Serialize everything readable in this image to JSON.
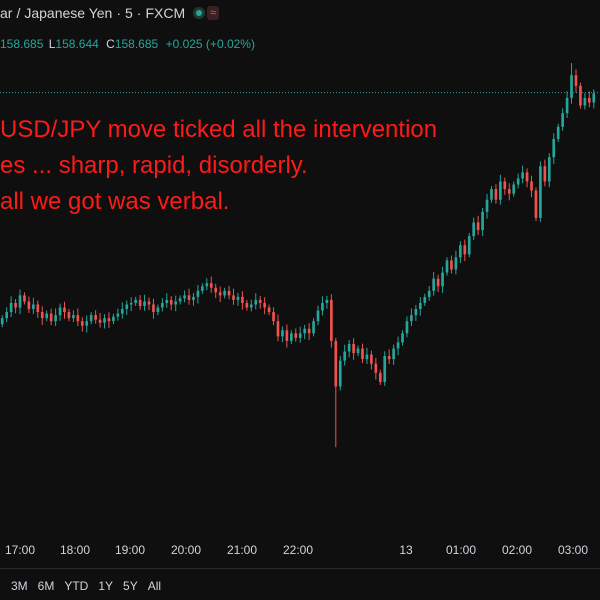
{
  "header": {
    "title_parts": [
      "ar",
      "Japanese Yen",
      "5",
      "FXCM"
    ],
    "wave_glyph": "≈"
  },
  "ohlc": {
    "open_value": "158.685",
    "low_label": "L",
    "low_value": "158.644",
    "close_label": "C",
    "close_value": "158.685",
    "change": "+0.025 (+0.02%)"
  },
  "annotation": {
    "lines": [
      "USD/JPY move ticked all the intervention",
      "es ... sharp, rapid, disorderly.",
      "all we got was verbal."
    ]
  },
  "colors": {
    "up": "#26a69a",
    "down": "#ef5350",
    "annotation": "#ff1a1a",
    "background": "#0f0f0f",
    "price_line": "#26a69a"
  },
  "chart_data": {
    "type": "candlestick",
    "symbol": "USD/JPY",
    "interval": "5",
    "source": "FXCM",
    "current_price": 158.685,
    "x_ticks": [
      "17:00",
      "18:00",
      "19:00",
      "20:00",
      "21:00",
      "22:00",
      "13",
      "01:00",
      "02:00",
      "03:00"
    ],
    "ylim": [
      156.2,
      158.9
    ],
    "closes": [
      157.2,
      157.24,
      157.3,
      157.27,
      157.35,
      157.31,
      157.26,
      157.29,
      157.24,
      157.2,
      157.23,
      157.18,
      157.22,
      157.27,
      157.24,
      157.2,
      157.22,
      157.18,
      157.15,
      157.18,
      157.22,
      157.19,
      157.17,
      157.2,
      157.18,
      157.21,
      157.23,
      157.26,
      157.29,
      157.3,
      157.32,
      157.28,
      157.31,
      157.29,
      157.24,
      157.27,
      157.3,
      157.32,
      157.29,
      157.31,
      157.33,
      157.35,
      157.32,
      157.34,
      157.38,
      157.41,
      157.43,
      157.4,
      157.37,
      157.35,
      157.38,
      157.35,
      157.32,
      157.34,
      157.3,
      157.27,
      157.29,
      157.32,
      157.3,
      157.27,
      157.24,
      157.18,
      157.08,
      157.12,
      157.05,
      157.1,
      157.07,
      157.1,
      157.13,
      157.1,
      157.18,
      157.25,
      157.3,
      157.32,
      157.05,
      156.75,
      156.92,
      156.98,
      157.03,
      156.97,
      157.0,
      156.93,
      156.96,
      156.9,
      156.84,
      156.78,
      156.95,
      156.93,
      157.0,
      157.04,
      157.1,
      157.18,
      157.22,
      157.26,
      157.3,
      157.34,
      157.38,
      157.46,
      157.41,
      157.5,
      157.58,
      157.52,
      157.6,
      157.68,
      157.62,
      157.74,
      157.83,
      157.78,
      157.9,
      157.98,
      158.05,
      157.98,
      158.1,
      158.05,
      158.02,
      158.08,
      158.12,
      158.16,
      158.1,
      158.04,
      157.86,
      158.2,
      158.1,
      158.26,
      158.38,
      158.46,
      158.55,
      158.65,
      158.8,
      158.73,
      158.6,
      158.65,
      158.62,
      158.68
    ],
    "extent_min": 156.35,
    "extent_max": 158.88
  },
  "range_bar": [
    "3M",
    "6M",
    "YTD",
    "1Y",
    "5Y",
    "All"
  ]
}
